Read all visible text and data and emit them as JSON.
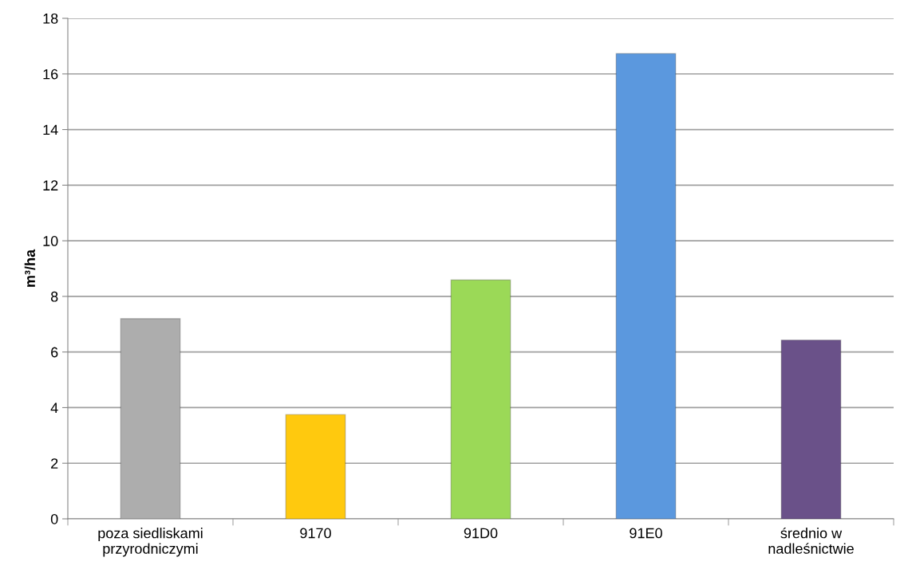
{
  "chart_data": {
    "type": "bar",
    "ylabel": "m³/ha",
    "categories": [
      "poza siedliskami\nprzyrodniczymi",
      "9170",
      "91D0",
      "91E0",
      "średnio w\nnadleśnictwie"
    ],
    "values": [
      7.2,
      3.75,
      8.59,
      16.73,
      6.43
    ],
    "colors": [
      "#adadad",
      "#ffc90e",
      "#9bd957",
      "#5b98de",
      "#6a5189"
    ],
    "ylim": [
      0,
      18
    ],
    "yticks": [
      0,
      2,
      4,
      6,
      8,
      10,
      12,
      14,
      16,
      18
    ],
    "grid": "y"
  }
}
